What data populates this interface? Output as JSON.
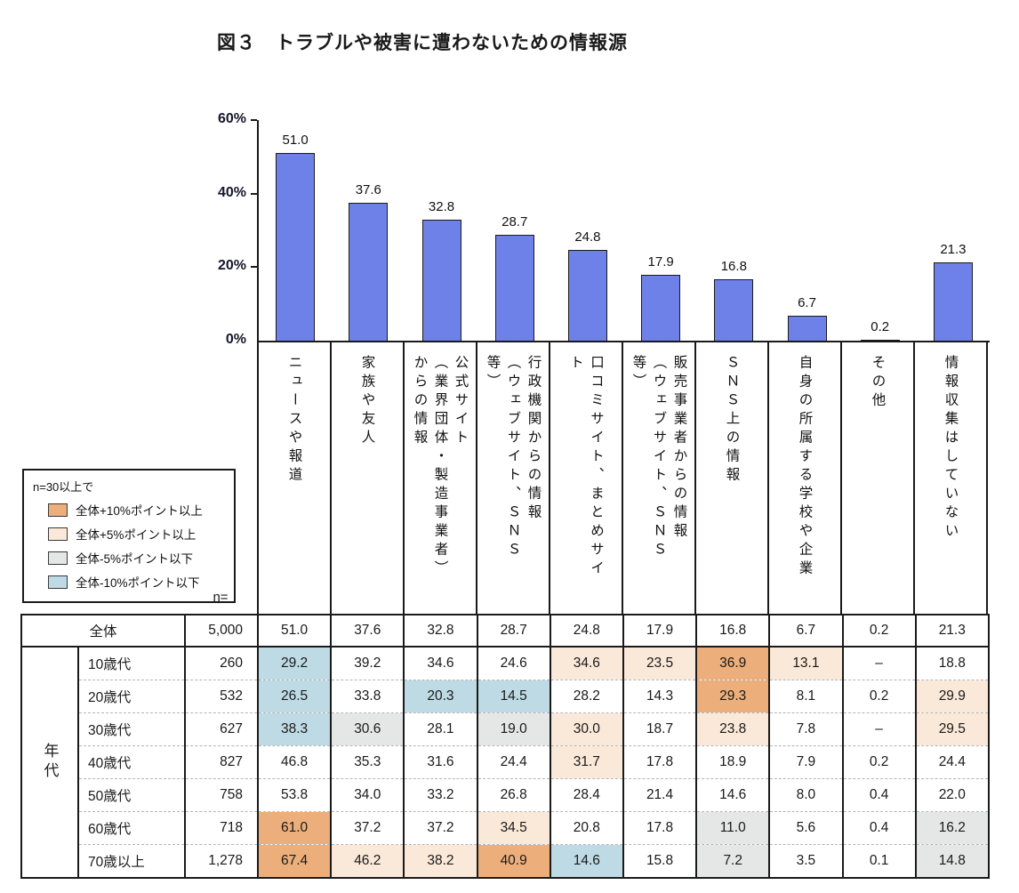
{
  "title": "図３　トラブルや被害に遭わないための情報源",
  "colors": {
    "bar_fill": "#6E81E8",
    "bar_border": "#1a1a1a",
    "axis": "#1a1a1a"
  },
  "highlight_colors": {
    "p10": "#ECAF7B",
    "p5": "#FAE8D8",
    "m5": "#E4E7E5",
    "m10": "#BEDAE4"
  },
  "chart_data": {
    "type": "bar",
    "title": "図３　トラブルや被害に遭わないための情報源",
    "categories": [
      "ニュースや報道",
      "家族や友人",
      "公式サイト\n（業界団体・製造事業者）\nからの情報",
      "行政機関からの情報\n（ウェブサイト、ＳＮＳ\n等）",
      "口コミサイト、まとめサイ\nト",
      "販売事業者からの情報\n（ウェブサイト、ＳＮＳ\n等）",
      "ＳＮＳ上の情報",
      "自身の所属する学校や企業",
      "その他",
      "情報収集はしていない"
    ],
    "values": [
      51.0,
      37.6,
      32.8,
      28.7,
      24.8,
      17.9,
      16.8,
      6.7,
      0.2,
      21.3
    ],
    "value_labels": [
      "51.0",
      "37.6",
      "32.8",
      "28.7",
      "24.8",
      "17.9",
      "16.8",
      "6.7",
      "0.2",
      "21.3"
    ],
    "xlabel": "",
    "ylabel": "",
    "yticks": [
      0,
      20,
      40,
      60
    ],
    "ytick_labels": [
      "0%",
      "20%",
      "40%",
      "60%"
    ],
    "ylim": [
      0,
      60
    ],
    "grid": false,
    "legend_position": "left-middle"
  },
  "legend": {
    "intro": "n=30以上で",
    "items": [
      {
        "label": "全体+10%ポイント以上",
        "flag": "p10",
        "color": "#ECAF7B"
      },
      {
        "label": "全体+5%ポイント以上",
        "flag": "p5",
        "color": "#FAE8D8"
      },
      {
        "label": "全体-5%ポイント以下",
        "flag": "m5",
        "color": "#E4E7E5"
      },
      {
        "label": "全体-10%ポイント以下",
        "flag": "m10",
        "color": "#BEDAE4"
      }
    ]
  },
  "table": {
    "n_label": "n=",
    "group_label": "年代",
    "overall_row": {
      "label": "全体",
      "n": "5,000",
      "values": [
        "51.0",
        "37.6",
        "32.8",
        "28.7",
        "24.8",
        "17.9",
        "16.8",
        "6.7",
        "0.2",
        "21.3"
      ],
      "flags": [
        "",
        "",
        "",
        "",
        "",
        "",
        "",
        "",
        "",
        ""
      ]
    },
    "rows": [
      {
        "label": "10歳代",
        "n": "260",
        "values": [
          "29.2",
          "39.2",
          "34.6",
          "24.6",
          "34.6",
          "23.5",
          "36.9",
          "13.1",
          "–",
          "18.8"
        ],
        "flags": [
          "m10",
          "",
          "",
          "",
          "p5",
          "p5",
          "p10",
          "p5",
          "",
          ""
        ]
      },
      {
        "label": "20歳代",
        "n": "532",
        "values": [
          "26.5",
          "33.8",
          "20.3",
          "14.5",
          "28.2",
          "14.3",
          "29.3",
          "8.1",
          "0.2",
          "29.9"
        ],
        "flags": [
          "m10",
          "",
          "m10",
          "m10",
          "",
          "",
          "p10",
          "",
          "",
          "p5"
        ]
      },
      {
        "label": "30歳代",
        "n": "627",
        "values": [
          "38.3",
          "30.6",
          "28.1",
          "19.0",
          "30.0",
          "18.7",
          "23.8",
          "7.8",
          "–",
          "29.5"
        ],
        "flags": [
          "m10",
          "m5",
          "",
          "m5",
          "p5",
          "",
          "p5",
          "",
          "",
          "p5"
        ]
      },
      {
        "label": "40歳代",
        "n": "827",
        "values": [
          "46.8",
          "35.3",
          "31.6",
          "24.4",
          "31.7",
          "17.8",
          "18.9",
          "7.9",
          "0.2",
          "24.4"
        ],
        "flags": [
          "",
          "",
          "",
          "",
          "p5",
          "",
          "",
          "",
          "",
          ""
        ]
      },
      {
        "label": "50歳代",
        "n": "758",
        "values": [
          "53.8",
          "34.0",
          "33.2",
          "26.8",
          "28.4",
          "21.4",
          "14.6",
          "8.0",
          "0.4",
          "22.0"
        ],
        "flags": [
          "",
          "",
          "",
          "",
          "",
          "",
          "",
          "",
          "",
          ""
        ]
      },
      {
        "label": "60歳代",
        "n": "718",
        "values": [
          "61.0",
          "37.2",
          "37.2",
          "34.5",
          "20.8",
          "17.8",
          "11.0",
          "5.6",
          "0.4",
          "16.2"
        ],
        "flags": [
          "p10",
          "",
          "",
          "p5",
          "",
          "",
          "m5",
          "",
          "",
          "m5"
        ]
      },
      {
        "label": "70歳以上",
        "n": "1,278",
        "values": [
          "67.4",
          "46.2",
          "38.2",
          "40.9",
          "14.6",
          "15.8",
          "7.2",
          "3.5",
          "0.1",
          "14.8"
        ],
        "flags": [
          "p10",
          "p5",
          "p5",
          "p10",
          "m10",
          "",
          "m5",
          "",
          "",
          "m5"
        ]
      }
    ]
  }
}
